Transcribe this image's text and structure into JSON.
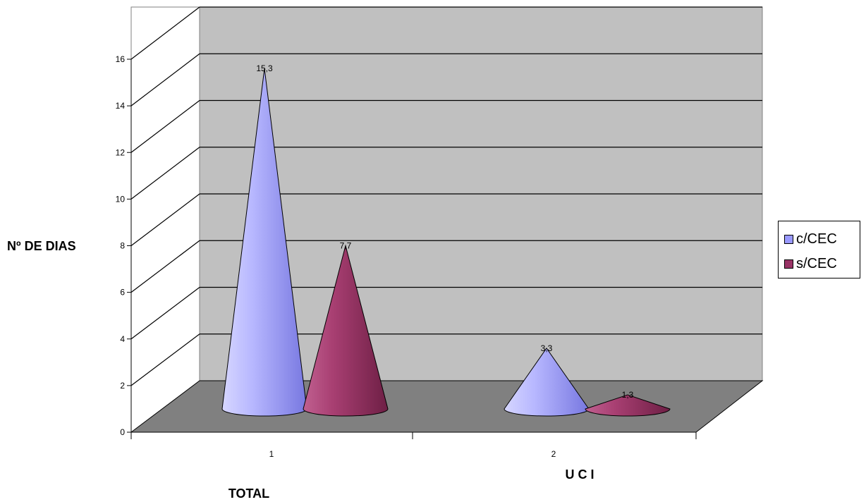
{
  "chart_data": {
    "type": "bar",
    "style": "3d-cone",
    "categories": [
      "1",
      "2"
    ],
    "category_titles": [
      "TOTAL",
      "U C I"
    ],
    "ylabel": "Nº  DE DIAS",
    "ylim": [
      0,
      16
    ],
    "yticks": [
      "0",
      "2",
      "4",
      "6",
      "8",
      "10",
      "12",
      "14",
      "16"
    ],
    "grid": true,
    "legend_position": "right",
    "series": [
      {
        "name": "c/CEC",
        "values": [
          15.3,
          3.3
        ],
        "labels": [
          "15,3",
          "3,3"
        ],
        "color": "#9999ff"
      },
      {
        "name": "s/CEC",
        "values": [
          7.7,
          1.3
        ],
        "labels": [
          "7,7",
          "1,3"
        ],
        "color": "#993366"
      }
    ]
  },
  "colors": {
    "back_wall": "#c0c0c0",
    "floor": "#808080",
    "grid": "#000000"
  }
}
